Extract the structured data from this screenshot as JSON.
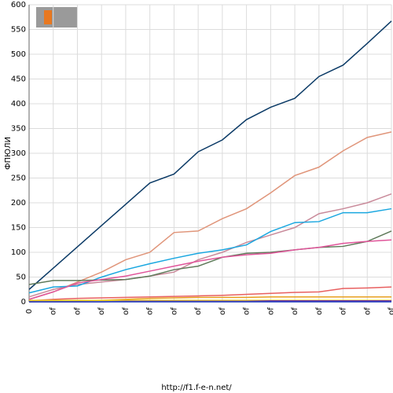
{
  "chart_data": {
    "type": "line",
    "y_label": "ФПЮЛИ",
    "footer": "http://f1.f-e-n.net/",
    "categories": [
      "0",
      "of",
      "of",
      "of",
      "of",
      "of",
      "of",
      "of",
      "of",
      "of",
      "of",
      "of",
      "of",
      "of",
      "of",
      "of"
    ],
    "series": [
      {
        "color": "#0b3a66",
        "values": [
          25,
          68,
          111,
          154,
          197,
          240,
          258,
          303,
          327,
          368,
          393,
          411,
          455,
          478,
          522,
          567
        ]
      },
      {
        "color": "#e0957a",
        "values": [
          5,
          20,
          40,
          60,
          85,
          100,
          140,
          143,
          168,
          188,
          220,
          255,
          272,
          305,
          332,
          343
        ]
      },
      {
        "color": "#c98a9a",
        "values": [
          10,
          25,
          35,
          40,
          45,
          52,
          60,
          85,
          100,
          120,
          135,
          150,
          178,
          188,
          200,
          218
        ]
      },
      {
        "color": "#1aa7e0",
        "values": [
          18,
          30,
          32,
          50,
          65,
          77,
          88,
          98,
          105,
          115,
          142,
          160,
          162,
          180,
          180,
          188
        ]
      },
      {
        "color": "#5f7a5a",
        "values": [
          35,
          43,
          43,
          44,
          45,
          52,
          65,
          72,
          90,
          98,
          100,
          105,
          110,
          112,
          122,
          143
        ]
      },
      {
        "color": "#e0559a",
        "values": [
          5,
          20,
          38,
          45,
          52,
          62,
          72,
          82,
          90,
          95,
          98,
          105,
          110,
          118,
          122,
          125
        ]
      },
      {
        "color": "#e86060",
        "values": [
          2,
          5,
          7,
          8,
          9,
          10,
          11,
          12,
          13,
          15,
          17,
          19,
          20,
          27,
          28,
          30
        ]
      },
      {
        "color": "#e8a020",
        "values": [
          0,
          1,
          2,
          3,
          5,
          7,
          8,
          9,
          9,
          9,
          10,
          10,
          10,
          10,
          10,
          10
        ]
      },
      {
        "color": "#e8d020",
        "values": [
          3,
          3,
          3,
          3,
          3,
          3,
          3,
          3,
          3,
          3,
          3,
          3,
          3,
          3,
          3,
          3
        ]
      },
      {
        "color": "#7030a0",
        "values": [
          0,
          0,
          0,
          0,
          1,
          1,
          1,
          1,
          1,
          1,
          2,
          2,
          2,
          2,
          2,
          2
        ]
      },
      {
        "color": "#2040c0",
        "values": [
          0,
          0,
          0,
          0,
          0,
          0,
          0,
          0,
          0,
          0,
          0,
          0,
          0,
          0,
          0,
          0
        ]
      }
    ],
    "ylim": [
      0,
      600
    ],
    "yticks": [
      0,
      50,
      100,
      150,
      200,
      250,
      300,
      350,
      400,
      450,
      500,
      550,
      600
    ],
    "grid": true
  }
}
